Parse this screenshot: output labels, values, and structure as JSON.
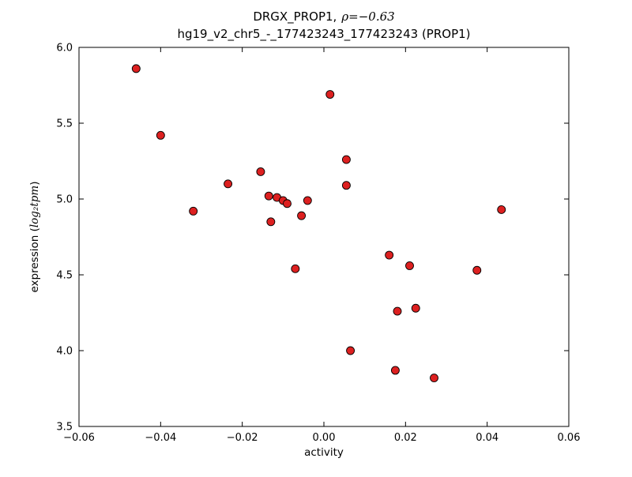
{
  "header": {
    "title_prefix": "DRGX_PROP1,",
    "title_math": "ρ=−0.63",
    "subtitle": "hg19_v2_chr5_-_177423243_177423243 (PROP1)"
  },
  "axes": {
    "xlabel": "activity",
    "ylabel_prefix": "expression (",
    "ylabel_math": "log₂tpm",
    "ylabel_suffix": ")"
  },
  "chart_data": {
    "type": "scatter",
    "title": "DRGX_PROP1, ρ=−0.63",
    "subtitle": "hg19_v2_chr5_-_177423243_177423243 (PROP1)",
    "xlabel": "activity",
    "ylabel": "expression (log2 tpm)",
    "xlim": [
      -0.06,
      0.06
    ],
    "ylim": [
      3.5,
      6.0
    ],
    "xticks": [
      -0.06,
      -0.04,
      -0.02,
      0.0,
      0.02,
      0.04,
      0.06
    ],
    "xtick_labels": [
      "−0.06",
      "−0.04",
      "−0.02",
      "0.00",
      "0.02",
      "0.04",
      "0.06"
    ],
    "yticks": [
      3.5,
      4.0,
      4.5,
      5.0,
      5.5,
      6.0
    ],
    "ytick_labels": [
      "3.5",
      "4.0",
      "4.5",
      "5.0",
      "5.5",
      "6.0"
    ],
    "grid": false,
    "legend": null,
    "marker": {
      "shape": "circle",
      "color": "#dd2020",
      "edge": "#000000",
      "size": 5
    },
    "points": [
      [
        -0.046,
        5.86
      ],
      [
        -0.04,
        5.42
      ],
      [
        -0.032,
        4.92
      ],
      [
        -0.0235,
        5.1
      ],
      [
        -0.0155,
        5.18
      ],
      [
        -0.0135,
        5.02
      ],
      [
        -0.0115,
        5.01
      ],
      [
        -0.013,
        4.85
      ],
      [
        -0.01,
        4.99
      ],
      [
        -0.009,
        4.97
      ],
      [
        -0.007,
        4.54
      ],
      [
        -0.0055,
        4.89
      ],
      [
        -0.004,
        4.99
      ],
      [
        0.0015,
        5.69
      ],
      [
        0.0055,
        5.26
      ],
      [
        0.0055,
        5.09
      ],
      [
        0.0065,
        4.0
      ],
      [
        0.016,
        4.63
      ],
      [
        0.018,
        4.26
      ],
      [
        0.0175,
        3.87
      ],
      [
        0.021,
        4.56
      ],
      [
        0.0225,
        4.28
      ],
      [
        0.027,
        3.82
      ],
      [
        0.0375,
        4.53
      ],
      [
        0.0435,
        4.93
      ]
    ]
  }
}
